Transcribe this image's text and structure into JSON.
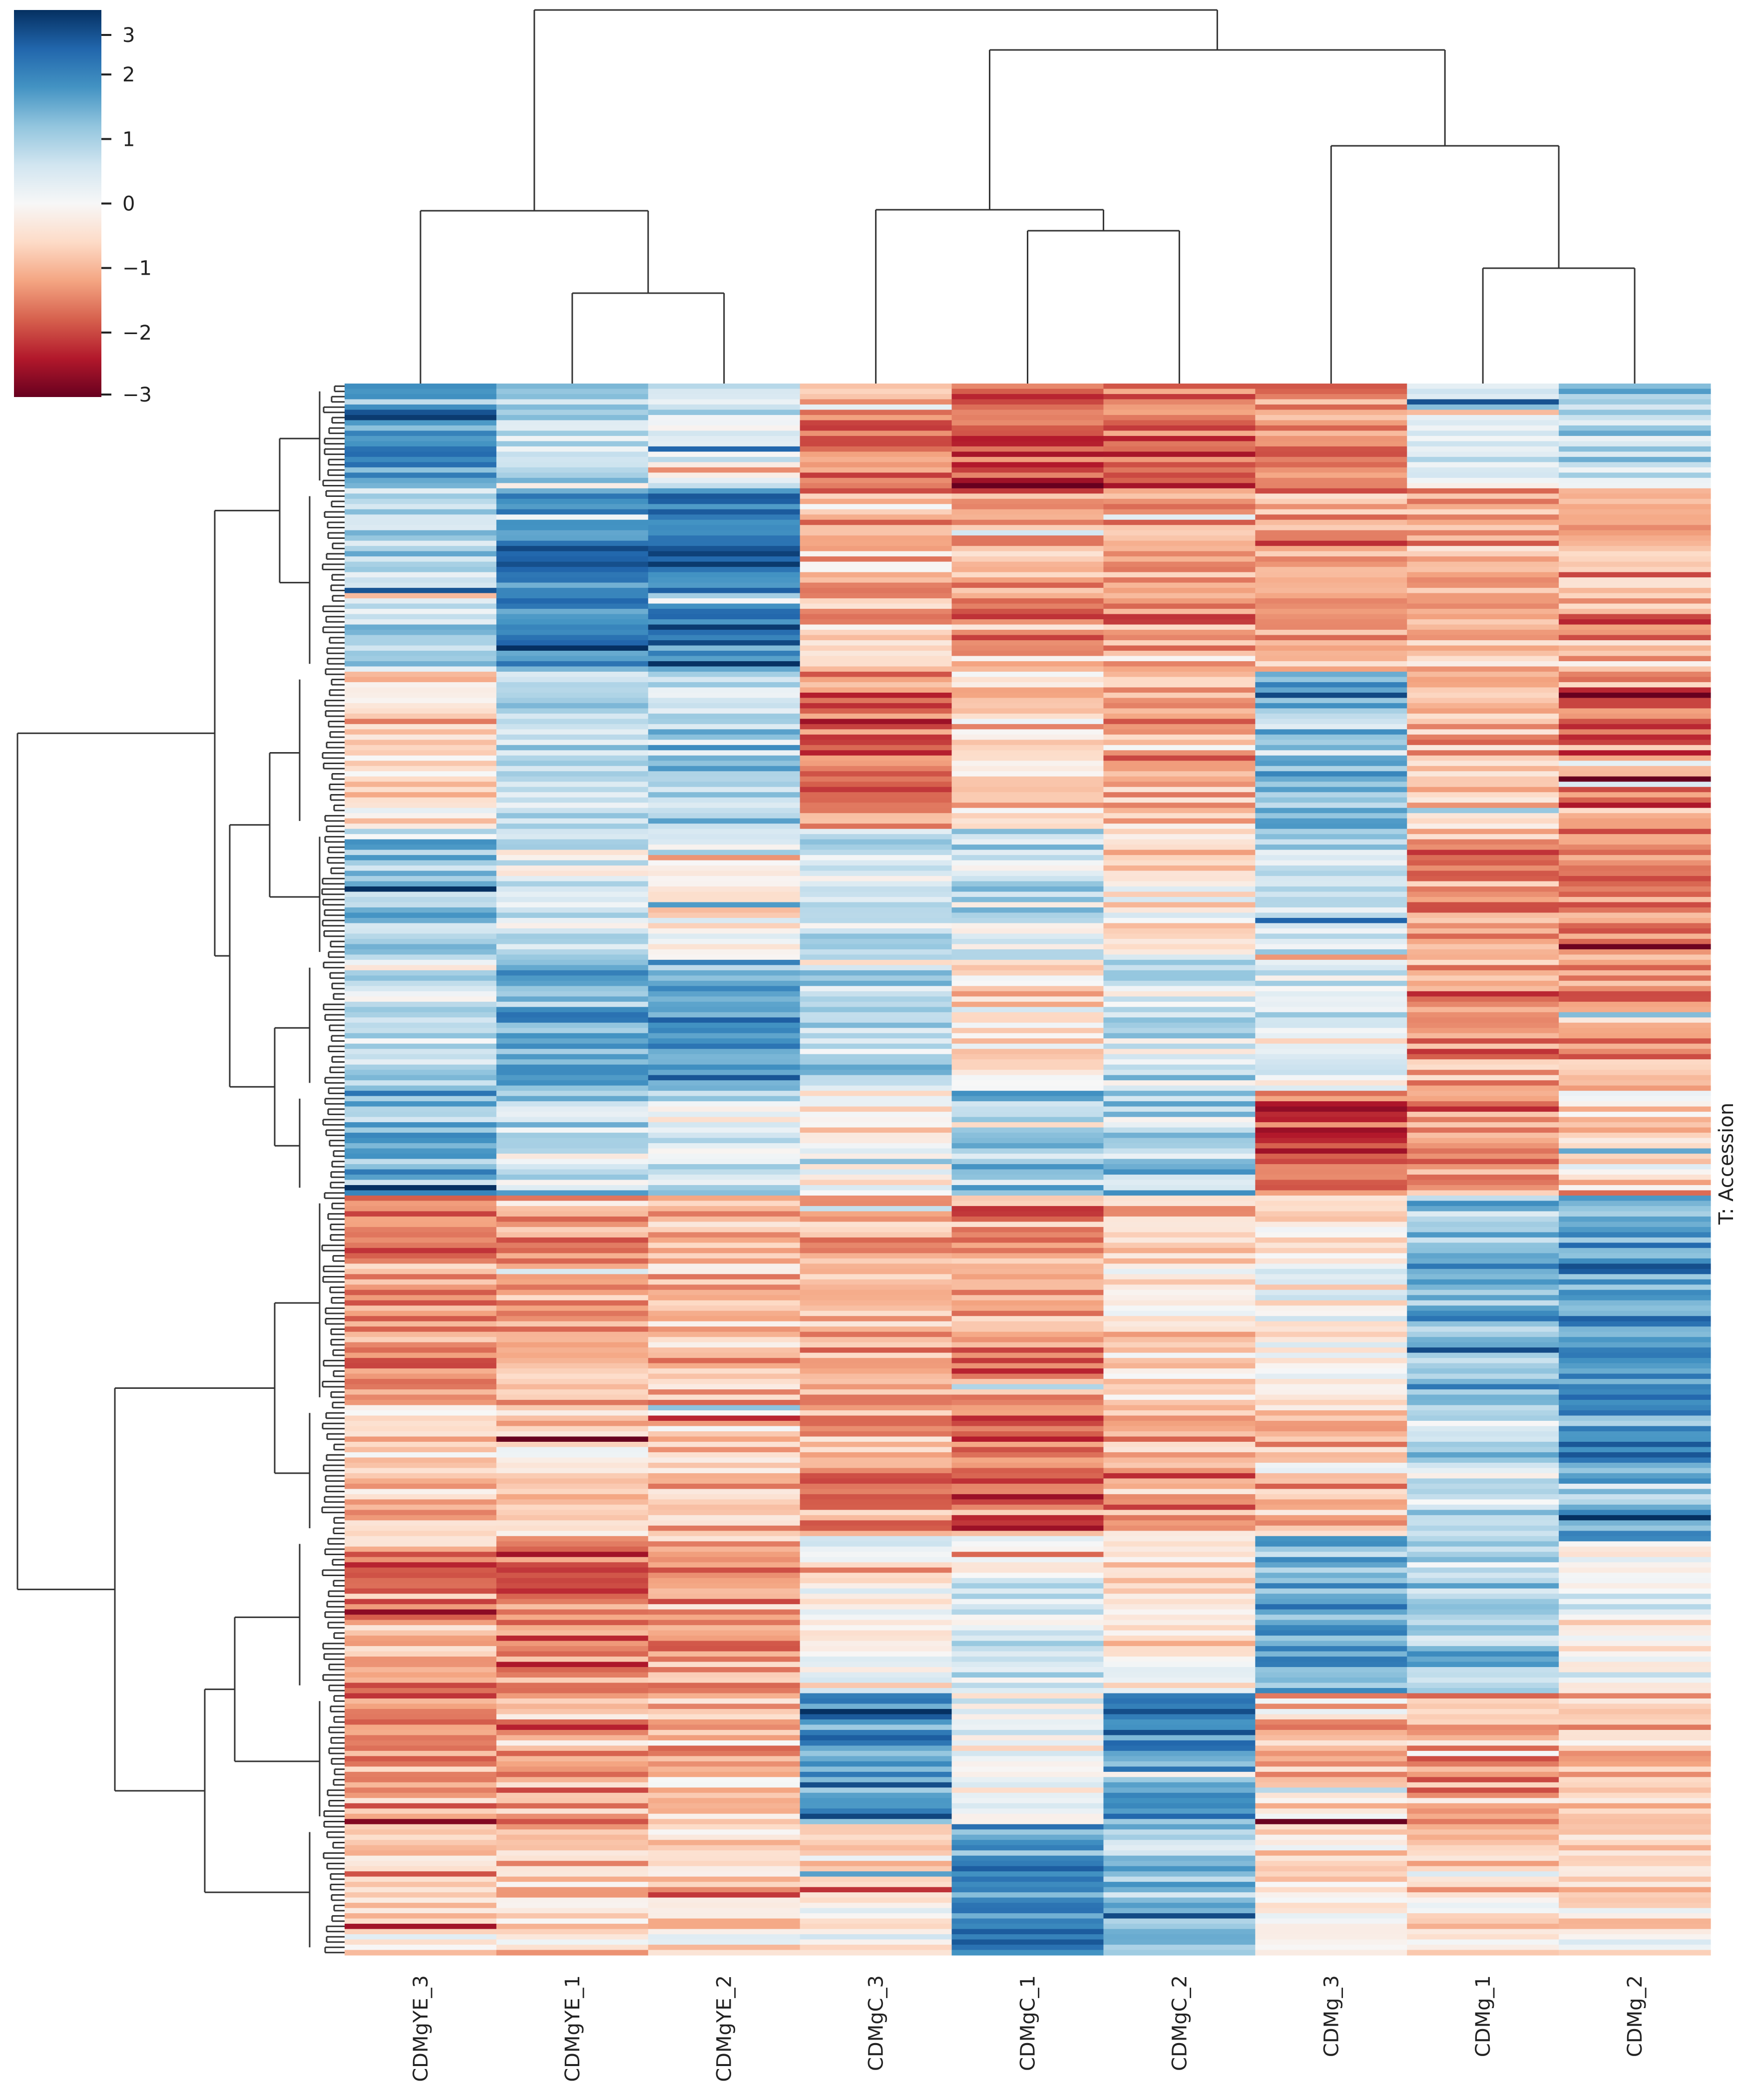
{
  "chart_data": {
    "type": "heatmap",
    "title": "",
    "xlabel": "",
    "ylabel": "T: Accession",
    "columns": [
      "CDMgYE_3",
      "CDMgYE_1",
      "CDMgYE_2",
      "CDMgC_3",
      "CDMgC_1",
      "CDMgC_2",
      "CDMg_3",
      "CDMg_1",
      "CDMg_2"
    ],
    "colormap": "RdBu_r",
    "vmin": -3,
    "vmax": 3,
    "colorbar_ticks": [
      "3",
      "2",
      "1",
      "0",
      "−1",
      "−2",
      "−3"
    ],
    "colorbar_stops": [
      "#67001f",
      "#b2182b",
      "#d6604d",
      "#f4a582",
      "#fddbc7",
      "#f7f7f7",
      "#d1e5f0",
      "#92c5de",
      "#4393c3",
      "#2166ac",
      "#053061"
    ],
    "n_rows": 300,
    "row_blocks": [
      {
        "rows": 20,
        "values": [
          2.0,
          0.6,
          0.5,
          -1.5,
          -2.0,
          -1.8,
          -1.6,
          0.5,
          0.8
        ]
      },
      {
        "rows": 35,
        "values": [
          1.0,
          2.0,
          2.2,
          -1.0,
          -1.2,
          -1.3,
          -1.2,
          -1.0,
          -1.0
        ]
      },
      {
        "rows": 30,
        "values": [
          -0.6,
          0.8,
          0.9,
          -1.6,
          -0.5,
          -0.9,
          1.2,
          -1.0,
          -1.5
        ]
      },
      {
        "rows": 25,
        "values": [
          1.2,
          0.4,
          -0.2,
          0.6,
          0.5,
          -0.3,
          0.6,
          -1.3,
          -1.6
        ]
      },
      {
        "rows": 25,
        "values": [
          0.5,
          1.5,
          1.6,
          0.7,
          -0.4,
          0.5,
          0.3,
          -1.3,
          -1.2
        ]
      },
      {
        "rows": 20,
        "values": [
          1.3,
          0.7,
          0.5,
          -0.3,
          1.0,
          0.9,
          -2.0,
          -1.4,
          -0.6
        ]
      },
      {
        "rows": 40,
        "values": [
          -1.4,
          -1.1,
          -1.0,
          -1.0,
          -1.2,
          -0.5,
          -0.2,
          1.4,
          1.8
        ]
      },
      {
        "rows": 25,
        "values": [
          -0.6,
          -0.7,
          -0.6,
          -1.3,
          -1.6,
          -1.3,
          -0.9,
          0.8,
          1.6
        ]
      },
      {
        "rows": 30,
        "values": [
          -1.3,
          -1.5,
          -1.3,
          0.0,
          0.4,
          -0.4,
          1.6,
          1.0,
          -0.1
        ]
      },
      {
        "rows": 25,
        "values": [
          -1.2,
          -1.0,
          -0.9,
          1.9,
          0.2,
          1.9,
          -0.7,
          -1.0,
          -0.7
        ]
      },
      {
        "rows": 25,
        "values": [
          -0.6,
          -0.6,
          -0.5,
          -0.3,
          1.8,
          1.2,
          -0.4,
          -0.5,
          -0.4
        ]
      }
    ]
  },
  "colorbar": {
    "tick_labels": [
      "3",
      "2",
      "1",
      "0",
      "−1",
      "−2",
      "−3"
    ]
  },
  "row_axis_label": "T: Accession"
}
